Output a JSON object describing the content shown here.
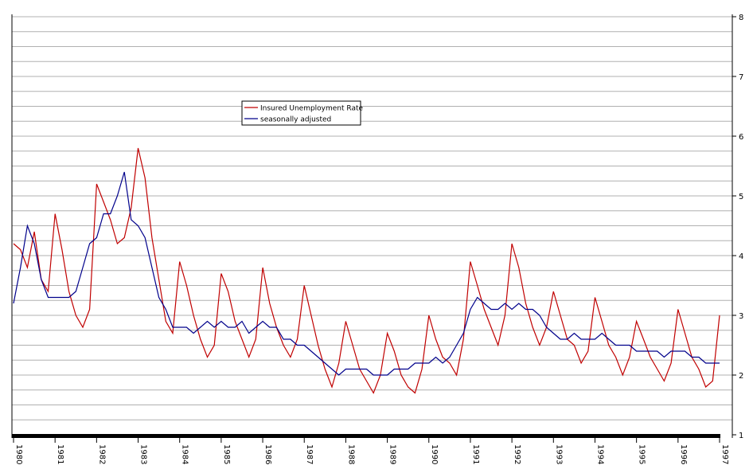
{
  "chart_data": {
    "type": "line",
    "x": [
      1980,
      1980.167,
      1980.333,
      1980.5,
      1980.667,
      1980.833,
      1981,
      1981.167,
      1981.333,
      1981.5,
      1981.667,
      1981.833,
      1982,
      1982.167,
      1982.333,
      1982.5,
      1982.667,
      1982.833,
      1983,
      1983.167,
      1983.333,
      1983.5,
      1983.667,
      1983.833,
      1984,
      1984.167,
      1984.333,
      1984.5,
      1984.667,
      1984.833,
      1985,
      1985.167,
      1985.333,
      1985.5,
      1985.667,
      1985.833,
      1986,
      1986.167,
      1986.333,
      1986.5,
      1986.667,
      1986.833,
      1987,
      1987.167,
      1987.333,
      1987.5,
      1987.667,
      1987.833,
      1988,
      1988.167,
      1988.333,
      1988.5,
      1988.667,
      1988.833,
      1989,
      1989.167,
      1989.333,
      1989.5,
      1989.667,
      1989.833,
      1990,
      1990.167,
      1990.333,
      1990.5,
      1990.667,
      1990.833,
      1991,
      1991.167,
      1991.333,
      1991.5,
      1991.667,
      1991.833,
      1992,
      1992.167,
      1992.333,
      1992.5,
      1992.667,
      1992.833,
      1993,
      1993.167,
      1993.333,
      1993.5,
      1993.667,
      1993.833,
      1994,
      1994.167,
      1994.333,
      1994.5,
      1994.667,
      1994.833,
      1995,
      1995.167,
      1995.333,
      1995.5,
      1995.667,
      1995.833,
      1996,
      1996.167,
      1996.333,
      1996.5,
      1996.667,
      1996.833,
      1997
    ],
    "series": [
      {
        "name": "Insured Unemployment Rate",
        "color": "#c00000",
        "values": [
          4.2,
          4.1,
          3.8,
          4.4,
          3.6,
          3.4,
          4.7,
          4.1,
          3.4,
          3.0,
          2.8,
          3.1,
          5.2,
          4.9,
          4.6,
          4.2,
          4.3,
          4.8,
          5.8,
          5.3,
          4.3,
          3.6,
          2.9,
          2.7,
          3.9,
          3.5,
          3.0,
          2.6,
          2.3,
          2.5,
          3.7,
          3.4,
          2.9,
          2.6,
          2.3,
          2.6,
          3.8,
          3.2,
          2.8,
          2.5,
          2.3,
          2.6,
          3.5,
          3.0,
          2.5,
          2.1,
          1.8,
          2.2,
          2.9,
          2.5,
          2.1,
          1.9,
          1.7,
          2.0,
          2.7,
          2.4,
          2.0,
          1.8,
          1.7,
          2.1,
          3.0,
          2.6,
          2.3,
          2.2,
          2.0,
          2.6,
          3.9,
          3.5,
          3.1,
          2.8,
          2.5,
          3.0,
          4.2,
          3.8,
          3.2,
          2.8,
          2.5,
          2.8,
          3.4,
          3.0,
          2.6,
          2.5,
          2.2,
          2.4,
          3.3,
          2.9,
          2.5,
          2.3,
          2.0,
          2.3,
          2.9,
          2.6,
          2.3,
          2.1,
          1.9,
          2.2,
          3.1,
          2.7,
          2.3,
          2.1,
          1.8,
          1.9,
          3.0
        ]
      },
      {
        "name": "seasonally adjusted",
        "color": "#00008b",
        "values": [
          3.2,
          3.8,
          4.5,
          4.2,
          3.6,
          3.3,
          3.3,
          3.3,
          3.3,
          3.4,
          3.8,
          4.2,
          4.3,
          4.7,
          4.7,
          5.0,
          5.4,
          4.6,
          4.5,
          4.3,
          3.8,
          3.3,
          3.1,
          2.8,
          2.8,
          2.8,
          2.7,
          2.8,
          2.9,
          2.8,
          2.9,
          2.8,
          2.8,
          2.9,
          2.7,
          2.8,
          2.9,
          2.8,
          2.8,
          2.6,
          2.6,
          2.5,
          2.5,
          2.4,
          2.3,
          2.2,
          2.1,
          2.0,
          2.1,
          2.1,
          2.1,
          2.1,
          2.0,
          2.0,
          2.0,
          2.1,
          2.1,
          2.1,
          2.2,
          2.2,
          2.2,
          2.3,
          2.2,
          2.3,
          2.5,
          2.7,
          3.1,
          3.3,
          3.2,
          3.1,
          3.1,
          3.2,
          3.1,
          3.2,
          3.1,
          3.1,
          3.0,
          2.8,
          2.7,
          2.6,
          2.6,
          2.7,
          2.6,
          2.6,
          2.6,
          2.7,
          2.6,
          2.5,
          2.5,
          2.5,
          2.4,
          2.4,
          2.4,
          2.4,
          2.3,
          2.4,
          2.4,
          2.4,
          2.3,
          2.3,
          2.2,
          2.2,
          2.2
        ]
      }
    ],
    "xlim": [
      1980,
      1997
    ],
    "xticks": [
      1980,
      1981,
      1982,
      1983,
      1984,
      1985,
      1986,
      1987,
      1988,
      1989,
      1990,
      1991,
      1992,
      1993,
      1994,
      1995,
      1996,
      1997
    ],
    "ylim": [
      1,
      8
    ],
    "yticks": [
      1,
      2,
      3,
      4,
      5,
      6,
      7,
      8
    ],
    "ygrid": [
      1.25,
      1.5,
      1.75,
      2,
      2.25,
      2.5,
      2.75,
      3,
      3.25,
      3.5,
      3.75,
      4,
      4.25,
      4.5,
      4.75,
      5,
      5.25,
      5.5,
      5.75,
      6,
      6.25,
      6.5,
      6.75,
      7,
      7.25,
      7.5,
      7.75,
      8
    ],
    "grid": true
  }
}
